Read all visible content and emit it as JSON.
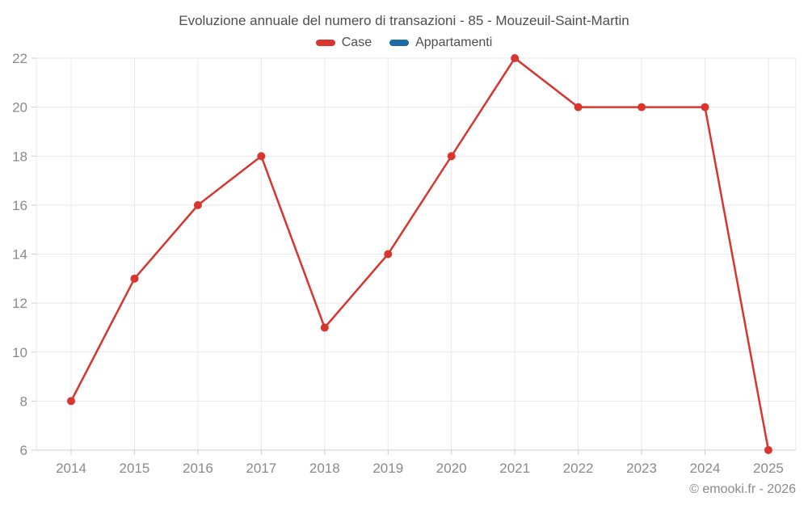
{
  "page": {
    "title": "Evoluzione annuale del numero di transazioni - 85 - Mouzeuil-Saint-Martin",
    "footer": "© emooki.fr - 2026"
  },
  "legend": [
    {
      "label": "Case",
      "color": "#d8352e"
    },
    {
      "label": "Appartamenti",
      "color": "#1a6ca4"
    }
  ],
  "chart_data": {
    "type": "line",
    "title": "Evoluzione annuale del numero di transazioni - 85 - Mouzeuil-Saint-Martin",
    "xlabel": "",
    "ylabel": "",
    "categories": [
      "2014",
      "2015",
      "2016",
      "2017",
      "2018",
      "2019",
      "2020",
      "2021",
      "2022",
      "2023",
      "2024",
      "2025"
    ],
    "series": [
      {
        "name": "Case",
        "color": "#d8352e",
        "values": [
          8,
          13,
          16,
          18,
          11,
          14,
          18,
          22,
          20,
          20,
          20,
          6
        ]
      },
      {
        "name": "Appartamenti",
        "color": "#1a6ca4",
        "values": []
      }
    ],
    "ylim": [
      6,
      22
    ],
    "ytick_step": 2,
    "grid": true,
    "legend_position": "top",
    "grid_color": "#e8e8e8",
    "axis_color": "#cccccc",
    "tick_label_color": "#8a8a8a"
  }
}
